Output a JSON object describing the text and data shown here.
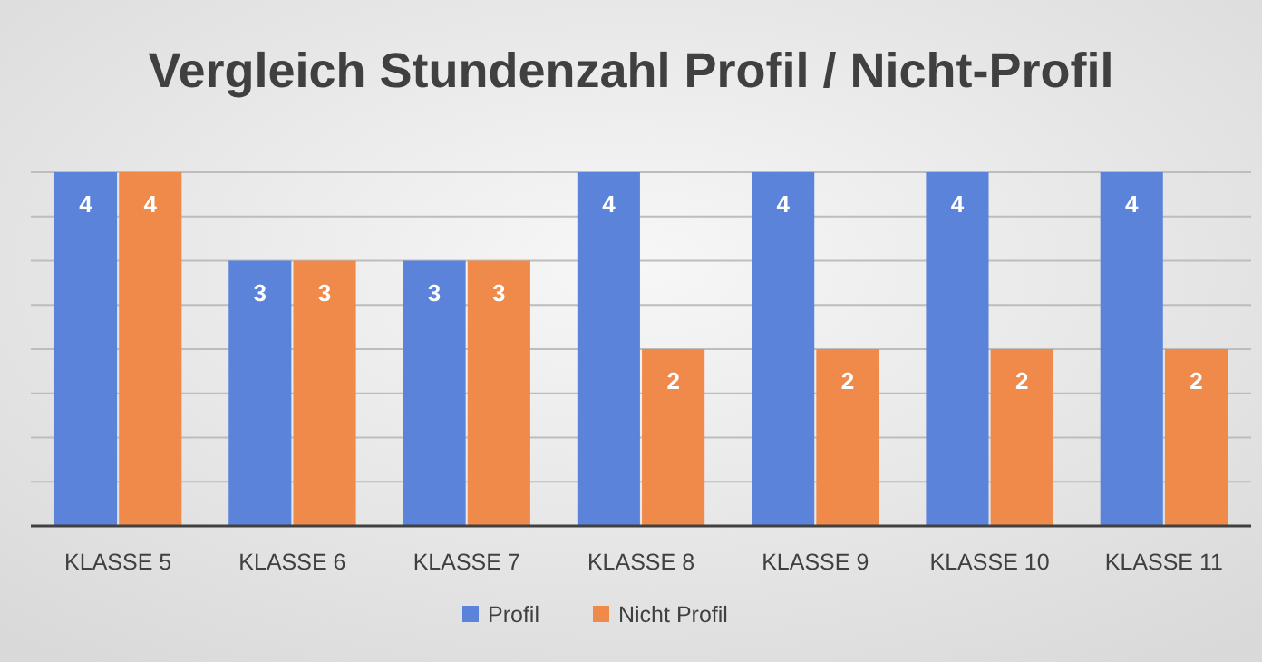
{
  "chart_data": {
    "type": "bar",
    "title": "Vergleich Stundenzahl Profil / Nicht-Profil",
    "categories": [
      "KLASSE 5",
      "KLASSE 6",
      "KLASSE 7",
      "KLASSE 8",
      "KLASSE 9",
      "KLASSE 10",
      "KLASSE 11"
    ],
    "series": [
      {
        "name": "Profil",
        "color": "#5b83d9",
        "values": [
          4,
          3,
          3,
          4,
          4,
          4,
          4
        ]
      },
      {
        "name": "Nicht Profil",
        "color": "#f08a4b",
        "values": [
          4,
          3,
          3,
          2,
          2,
          2,
          2
        ]
      }
    ],
    "ylim": [
      0,
      4
    ],
    "yticks": [
      {
        "value": 0,
        "label": null
      },
      {
        "value": 0.5,
        "label": null
      },
      {
        "value": 1,
        "label": null
      },
      {
        "value": 1.5,
        "label": null
      },
      {
        "value": 2,
        "label": null
      },
      {
        "value": 2.5,
        "label": null
      },
      {
        "value": 3,
        "label": null
      },
      {
        "value": 3.5,
        "label": null
      },
      {
        "value": 4,
        "label": null
      }
    ],
    "grid": true,
    "legend": "bottom",
    "data_labels": true,
    "tick_labels": "x"
  }
}
